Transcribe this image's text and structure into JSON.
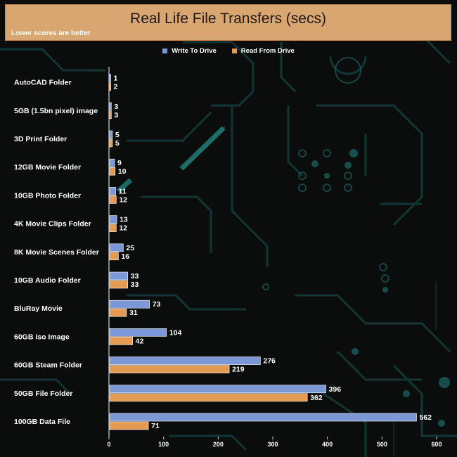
{
  "chart_data": {
    "type": "bar",
    "orientation": "horizontal",
    "title": "Real Life File Transfers (secs)",
    "subtitle": "Lower scores are better",
    "categories": [
      "AutoCAD Folder",
      "5GB (1.5bn pixel) image",
      "3D Print Folder",
      "12GB Movie Folder",
      "10GB Photo Folder",
      "4K Movie Clips Folder",
      "8K Movie Scenes Folder",
      "10GB Audio Folder",
      "BluRay Movie",
      "60GB iso Image",
      "60GB Steam Folder",
      "50GB File Folder",
      "100GB Data File"
    ],
    "series": [
      {
        "name": "Write To  Drive",
        "color": "#7b97d6",
        "values": [
          1,
          3,
          5,
          9,
          11,
          13,
          25,
          33,
          73,
          104,
          276,
          396,
          562
        ]
      },
      {
        "name": "Read From  Drive",
        "color": "#e59a52",
        "values": [
          2,
          3,
          5,
          10,
          12,
          12,
          16,
          33,
          31,
          42,
          219,
          362,
          71
        ]
      }
    ],
    "xlim": [
      0,
      600
    ],
    "xticks": [
      0,
      100,
      200,
      300,
      400,
      500,
      600
    ],
    "legend_position": "top-center",
    "grid": false
  },
  "colors": {
    "banner": "#d9a571",
    "background": "#0b0d0d",
    "circuit": "#1d6a68"
  }
}
